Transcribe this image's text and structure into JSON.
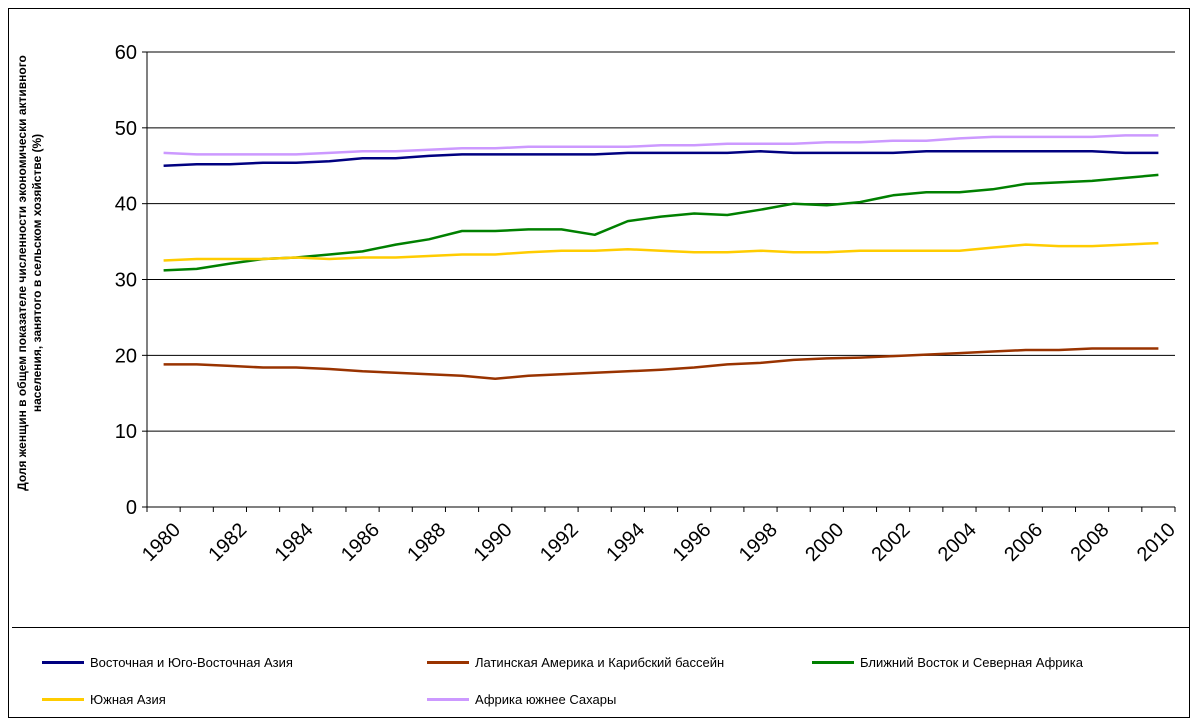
{
  "chart_data": {
    "type": "line",
    "title": "",
    "xlabel": "",
    "ylabel": "Доля женщин  в общем показателе численности  экономически активного населения, занятого  в сельском хозяйстве (%)",
    "ylabel_lines": [
      "Доля женщин  в общем показателе численности  экономически активного",
      "населения, занятого  в сельском хозяйстве (%)"
    ],
    "ylim": [
      0,
      60
    ],
    "yticks": [
      0,
      10,
      20,
      30,
      40,
      50,
      60
    ],
    "x": [
      1980,
      1981,
      1982,
      1983,
      1984,
      1985,
      1986,
      1987,
      1988,
      1989,
      1990,
      1991,
      1992,
      1993,
      1994,
      1995,
      1996,
      1997,
      1998,
      1999,
      2000,
      2001,
      2002,
      2003,
      2004,
      2005,
      2006,
      2007,
      2008,
      2009,
      2010
    ],
    "xtick_labels": [
      "1980",
      "1982",
      "1984",
      "1986",
      "1988",
      "1990",
      "1992",
      "1994",
      "1996",
      "1998",
      "2000",
      "2002",
      "2004",
      "2006",
      "2008",
      "2010"
    ],
    "grid": true,
    "legend_position": "bottom",
    "series": [
      {
        "name": "Восточная и Юго-Восточная Азия",
        "color": "#000080",
        "values": [
          45.0,
          45.2,
          45.2,
          45.4,
          45.4,
          45.6,
          46.0,
          46.0,
          46.3,
          46.5,
          46.5,
          46.5,
          46.5,
          46.5,
          46.7,
          46.7,
          46.7,
          46.7,
          46.9,
          46.7,
          46.7,
          46.7,
          46.7,
          46.9,
          46.9,
          46.9,
          46.9,
          46.9,
          46.9,
          46.7,
          46.7
        ]
      },
      {
        "name": "Латинская Америка и Карибский бассейн",
        "color": "#993300",
        "values": [
          18.8,
          18.8,
          18.6,
          18.4,
          18.4,
          18.2,
          17.9,
          17.7,
          17.5,
          17.3,
          16.9,
          17.3,
          17.5,
          17.7,
          17.9,
          18.1,
          18.4,
          18.8,
          19.0,
          19.4,
          19.6,
          19.7,
          19.9,
          20.1,
          20.3,
          20.5,
          20.7,
          20.7,
          20.9,
          20.9,
          20.9
        ]
      },
      {
        "name": "Ближний Восток и Северная Африка",
        "color": "#008000",
        "values": [
          31.2,
          31.4,
          32.1,
          32.7,
          32.9,
          33.3,
          33.7,
          34.6,
          35.3,
          36.4,
          36.4,
          36.6,
          36.6,
          35.9,
          37.7,
          38.3,
          38.7,
          38.5,
          39.2,
          40.0,
          39.8,
          40.2,
          41.1,
          41.5,
          41.5,
          41.9,
          42.6,
          42.8,
          43.0,
          43.4,
          43.8
        ]
      },
      {
        "name": "Южная Азия",
        "color": "#FFCC00",
        "values": [
          32.5,
          32.7,
          32.7,
          32.7,
          32.9,
          32.7,
          32.9,
          32.9,
          33.1,
          33.3,
          33.3,
          33.6,
          33.8,
          33.8,
          34.0,
          33.8,
          33.6,
          33.6,
          33.8,
          33.6,
          33.6,
          33.8,
          33.8,
          33.8,
          33.8,
          34.2,
          34.6,
          34.4,
          34.4,
          34.6,
          34.8
        ]
      },
      {
        "name": "Африка южнее Сахары",
        "color": "#CC99FF",
        "values": [
          46.7,
          46.5,
          46.5,
          46.5,
          46.5,
          46.7,
          46.9,
          46.9,
          47.1,
          47.3,
          47.3,
          47.5,
          47.5,
          47.5,
          47.5,
          47.7,
          47.7,
          47.9,
          47.9,
          47.9,
          48.1,
          48.1,
          48.3,
          48.3,
          48.6,
          48.8,
          48.8,
          48.8,
          48.8,
          49.0,
          49.0
        ]
      }
    ]
  }
}
